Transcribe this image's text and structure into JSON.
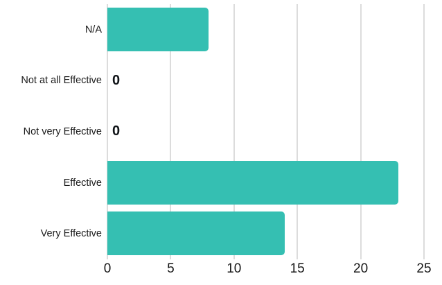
{
  "chart_data": {
    "type": "bar",
    "orientation": "horizontal",
    "categories": [
      "N/A",
      "Not at all Effective",
      "Not very Effective",
      "Effective",
      "Very Effective"
    ],
    "values": [
      8,
      0,
      0,
      23,
      14
    ],
    "zero_value_label": "0",
    "xlim": [
      0,
      25
    ],
    "xticks": [
      0,
      5,
      10,
      15,
      20,
      25
    ],
    "grid": "vertical",
    "legend": "none",
    "colors": {
      "bar": "#35bfb2",
      "gridline": "#dcdcdc",
      "category_label": "#1a1a1a",
      "tick_label": "#161616",
      "zero_value_label": "#101418",
      "background": "#ffffff"
    }
  }
}
